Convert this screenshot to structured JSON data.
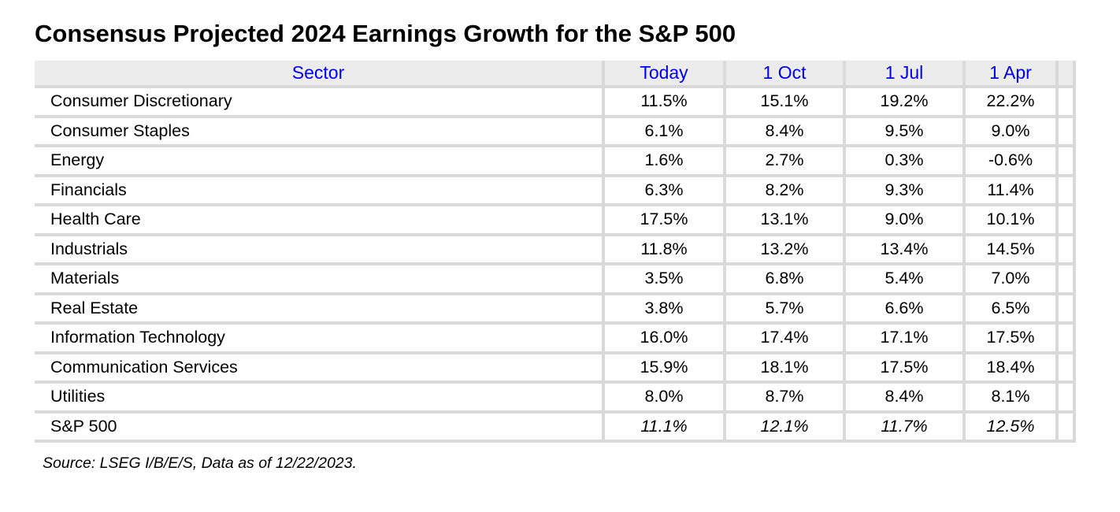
{
  "title": "Consensus Projected 2024 Earnings Growth for the S&P 500",
  "source_note": "Source: LSEG I/B/E/S, Data as of 12/22/2023.",
  "colors": {
    "header_text_blue": "#0000ee",
    "header_background": "#ececec",
    "grid_line": "#d9d9d9",
    "body_text": "#000000",
    "page_background": "#ffffff"
  },
  "chart_data": {
    "type": "table",
    "title": "Consensus Projected 2024 Earnings Growth for the S&P 500",
    "columns": [
      "Sector",
      "Today",
      "1 Oct",
      "1 Jul",
      "1 Apr"
    ],
    "rows": [
      {
        "sector": "Consumer Discretionary",
        "values": [
          "11.5%",
          "15.1%",
          "19.2%",
          "22.2%"
        ],
        "values_italic": false
      },
      {
        "sector": "Consumer Staples",
        "values": [
          "6.1%",
          "8.4%",
          "9.5%",
          "9.0%"
        ],
        "values_italic": false
      },
      {
        "sector": "Energy",
        "values": [
          "1.6%",
          "2.7%",
          "0.3%",
          "-0.6%"
        ],
        "values_italic": false
      },
      {
        "sector": "Financials",
        "values": [
          "6.3%",
          "8.2%",
          "9.3%",
          "11.4%"
        ],
        "values_italic": false
      },
      {
        "sector": "Health Care",
        "values": [
          "17.5%",
          "13.1%",
          "9.0%",
          "10.1%"
        ],
        "values_italic": false
      },
      {
        "sector": "Industrials",
        "values": [
          "11.8%",
          "13.2%",
          "13.4%",
          "14.5%"
        ],
        "values_italic": false
      },
      {
        "sector": "Materials",
        "values": [
          "3.5%",
          "6.8%",
          "5.4%",
          "7.0%"
        ],
        "values_italic": false
      },
      {
        "sector": "Real Estate",
        "values": [
          "3.8%",
          "5.7%",
          "6.6%",
          "6.5%"
        ],
        "values_italic": false
      },
      {
        "sector": "Information Technology",
        "values": [
          "16.0%",
          "17.4%",
          "17.1%",
          "17.5%"
        ],
        "values_italic": false
      },
      {
        "sector": "Communication Services",
        "values": [
          "15.9%",
          "18.1%",
          "17.5%",
          "18.4%"
        ],
        "values_italic": false
      },
      {
        "sector": "Utilities",
        "values": [
          "8.0%",
          "8.7%",
          "8.4%",
          "8.1%"
        ],
        "values_italic": false
      },
      {
        "sector": "S&P 500",
        "values": [
          "11.1%",
          "12.1%",
          "11.7%",
          "12.5%"
        ],
        "values_italic": true
      }
    ],
    "source": "Source: LSEG I/B/E/S, Data as of 12/22/2023.",
    "layout": {
      "grid": "excel-style gray gridlines",
      "legend": "none"
    }
  }
}
